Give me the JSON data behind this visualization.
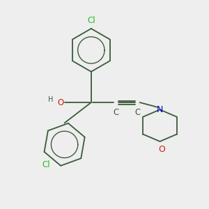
{
  "background_color": "#eeeeee",
  "bond_color": "#3a5a3a",
  "cl_color": "#22bb22",
  "o_color": "#cc2200",
  "n_color": "#0000cc",
  "h_color": "#3a5a3a",
  "c_color": "#3a5a3a",
  "font_size": 8.5,
  "bond_width": 1.3,
  "figsize": [
    3.0,
    3.0
  ],
  "dpi": 100,
  "xlim": [
    0,
    10
  ],
  "ylim": [
    0,
    10
  ]
}
